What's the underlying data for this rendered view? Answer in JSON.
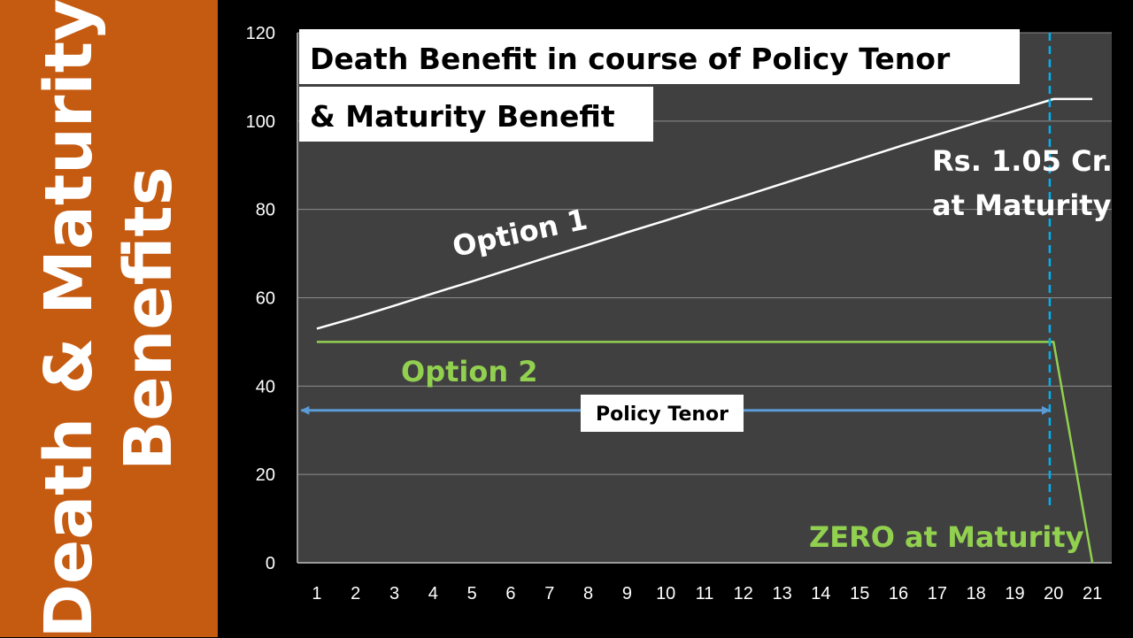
{
  "sidebar": {
    "line1": "Death & Maturity",
    "line2": "Benefits"
  },
  "colors": {
    "sidebar_bg": "#C55A11",
    "plot_bg": "#404040",
    "option1": "#FFFFFF",
    "option2": "#92D050",
    "tenor_arrow": "#5B9BD5",
    "maturity_line": "#00B0F0"
  },
  "chart_data": {
    "type": "line",
    "title_line1": "Death Benefit in course of Policy Tenor",
    "title_line2": "& Maturity Benefit",
    "xlabel": "",
    "ylabel": "",
    "categories": [
      1,
      2,
      3,
      4,
      5,
      6,
      7,
      8,
      9,
      10,
      11,
      12,
      13,
      14,
      15,
      16,
      17,
      18,
      19,
      20,
      21
    ],
    "ylim": [
      0,
      120
    ],
    "yticks": [
      0,
      20,
      40,
      60,
      80,
      100,
      120
    ],
    "grid": true,
    "series": [
      {
        "name": "Option 1",
        "x": [
          1,
          2,
          3,
          4,
          5,
          6,
          7,
          8,
          9,
          10,
          11,
          12,
          13,
          14,
          15,
          16,
          17,
          18,
          19,
          20,
          21
        ],
        "values": [
          53,
          55.5,
          58.2,
          61,
          63.7,
          66.5,
          69.3,
          72,
          74.8,
          77.5,
          80.3,
          83,
          85.8,
          88.6,
          91.4,
          94.2,
          96.9,
          99.6,
          102.3,
          105,
          105
        ]
      },
      {
        "name": "Option 2",
        "x": [
          1,
          20,
          21
        ],
        "values": [
          50,
          50,
          0
        ]
      }
    ],
    "annotations": {
      "option1_label": "Option 1",
      "option2_label": "Option 2",
      "maturity_value_line1": "Rs. 1.05 Cr.",
      "maturity_value_line2": "at Maturity",
      "zero_label": "ZERO at Maturity",
      "tenor_label": "Policy Tenor",
      "maturity_x": 19.9,
      "tenor_from_x": 0.6,
      "tenor_to_x": 19.9,
      "tenor_y": 34.5
    }
  }
}
